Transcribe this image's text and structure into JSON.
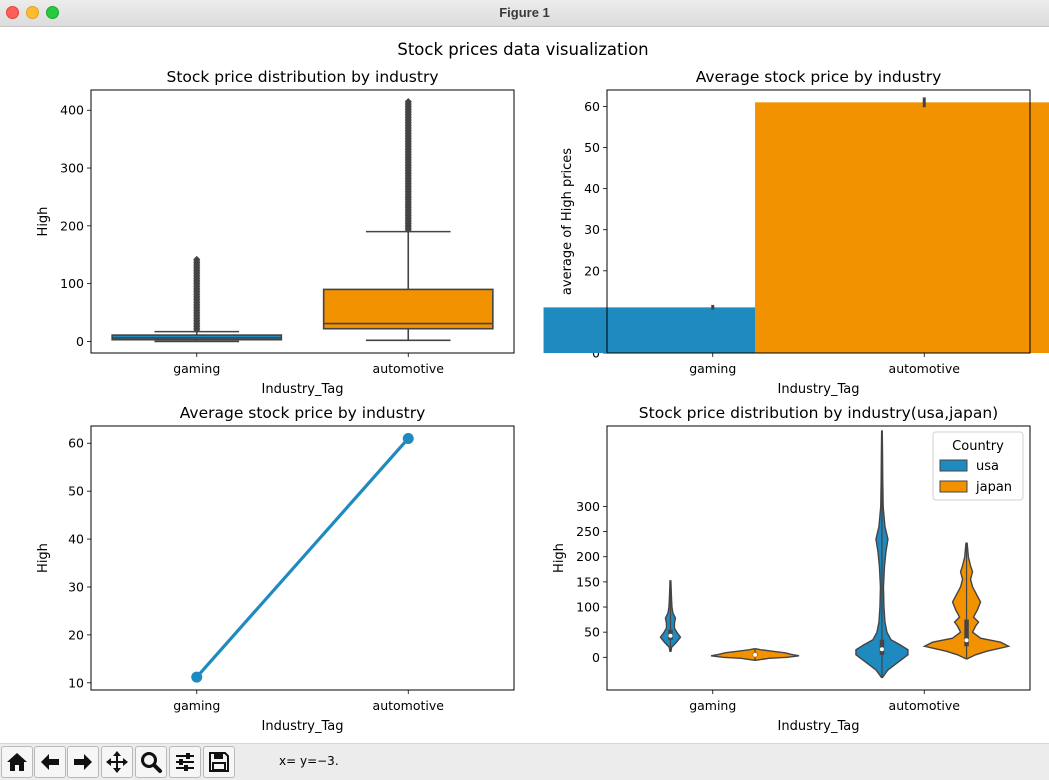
{
  "window": {
    "title": "Figure 1"
  },
  "figure": {
    "suptitle": "Stock prices data visualization"
  },
  "chart_data": [
    {
      "type": "box",
      "title": "Stock price distribution by industry",
      "xlabel": "Industry_Tag",
      "ylabel": "High",
      "categories": [
        "gaming",
        "automotive"
      ],
      "ylim": [
        -20,
        435
      ],
      "yticks": [
        0,
        100,
        200,
        300,
        400
      ],
      "boxes": [
        {
          "category": "gaming",
          "whisker_low": 0,
          "q1": 3,
          "median": 6,
          "q3": 11,
          "whisker_high": 17,
          "outlier_min": 20,
          "outlier_max": 142,
          "color": "#1f8ac0"
        },
        {
          "category": "automotive",
          "whisker_low": 2,
          "q1": 22,
          "median": 31,
          "q3": 90,
          "whisker_high": 190,
          "outlier_min": 193,
          "outlier_max": 415,
          "color": "#f39200"
        }
      ]
    },
    {
      "type": "bar",
      "title": "Average stock price by industry",
      "xlabel": "Industry_Tag",
      "ylabel": "average of High prices",
      "categories": [
        "gaming",
        "automotive"
      ],
      "values": [
        11.1,
        61.0
      ],
      "ci_low": [
        10.6,
        59.8
      ],
      "ci_high": [
        11.7,
        62.2
      ],
      "colors": [
        "#1f8ac0",
        "#f39200"
      ],
      "ylim": [
        0,
        64
      ],
      "yticks": [
        0,
        10,
        20,
        30,
        40,
        50,
        60
      ]
    },
    {
      "type": "line",
      "title": "Average stock price by industry",
      "xlabel": "Industry_Tag",
      "ylabel": "High",
      "categories": [
        "gaming",
        "automotive"
      ],
      "values": [
        11.2,
        61.0
      ],
      "ci_low": [
        10.7,
        59.9
      ],
      "ci_high": [
        11.7,
        62.1
      ],
      "color": "#1f8ac0",
      "ylim": [
        8.5,
        63.6
      ],
      "yticks": [
        10,
        20,
        30,
        40,
        50,
        60
      ]
    },
    {
      "type": "violin",
      "title": "Stock price distribution by industry(usa,japan)",
      "xlabel": "Industry_Tag",
      "ylabel": "High",
      "categories": [
        "gaming",
        "automotive"
      ],
      "legend": {
        "title": "Country",
        "position": "upper right",
        "entries": [
          "usa",
          "japan"
        ]
      },
      "hue_colors": [
        "#1f8ac0",
        "#f39200"
      ],
      "ylim": [
        -65,
        460
      ],
      "yticks": [
        0,
        50,
        100,
        150,
        200,
        250,
        300
      ],
      "violins": [
        {
          "category": "gaming",
          "hue": "usa",
          "min": 12,
          "max": 152,
          "q1": 35,
          "median": 43,
          "q3": 55,
          "profile": [
            [
              12,
              0.5
            ],
            [
              20,
              1.2
            ],
            [
              30,
              6
            ],
            [
              40,
              10
            ],
            [
              48,
              7
            ],
            [
              58,
              4
            ],
            [
              68,
              4
            ],
            [
              78,
              5
            ],
            [
              88,
              2.5
            ],
            [
              100,
              1.5
            ],
            [
              120,
              1
            ],
            [
              152,
              0.4
            ]
          ]
        },
        {
          "category": "gaming",
          "hue": "japan",
          "min": -6,
          "max": 17,
          "q1": 2,
          "median": 5,
          "q3": 9,
          "profile": [
            [
              -6,
              0.3
            ],
            [
              -2,
              14
            ],
            [
              0,
              32
            ],
            [
              3,
              44
            ],
            [
              6,
              36
            ],
            [
              9,
              30
            ],
            [
              12,
              18
            ],
            [
              15,
              6
            ],
            [
              17,
              1
            ]
          ]
        },
        {
          "category": "automotive",
          "hue": "usa",
          "min": -40,
          "max": 450,
          "q1": 5,
          "median": 16,
          "q3": 35,
          "profile": [
            [
              -40,
              0.5
            ],
            [
              -25,
              6
            ],
            [
              -10,
              16
            ],
            [
              5,
              26
            ],
            [
              15,
              26
            ],
            [
              25,
              18
            ],
            [
              35,
              9
            ],
            [
              50,
              5
            ],
            [
              70,
              3
            ],
            [
              100,
              2
            ],
            [
              140,
              1.5
            ],
            [
              180,
              2.5
            ],
            [
              210,
              4
            ],
            [
              235,
              6
            ],
            [
              260,
              3
            ],
            [
              300,
              1.2
            ],
            [
              350,
              0.8
            ],
            [
              400,
              0.6
            ],
            [
              450,
              0.3
            ]
          ]
        },
        {
          "category": "automotive",
          "hue": "japan",
          "min": -3,
          "max": 227,
          "q1": 22,
          "median": 34,
          "q3": 75,
          "profile": [
            [
              -3,
              0.5
            ],
            [
              5,
              9
            ],
            [
              12,
              20
            ],
            [
              22,
              42
            ],
            [
              30,
              34
            ],
            [
              38,
              14
            ],
            [
              50,
              6
            ],
            [
              62,
              9
            ],
            [
              70,
              12
            ],
            [
              80,
              7
            ],
            [
              95,
              11
            ],
            [
              110,
              14
            ],
            [
              125,
              10
            ],
            [
              140,
              6
            ],
            [
              155,
              4
            ],
            [
              170,
              6
            ],
            [
              182,
              4
            ],
            [
              200,
              1.8
            ],
            [
              227,
              0.6
            ]
          ]
        }
      ]
    }
  ],
  "toolbar": {
    "buttons": [
      "home-icon",
      "back-arrow-icon",
      "forward-arrow-icon",
      "pan-icon",
      "zoom-icon",
      "configure-subplots-icon",
      "save-icon"
    ],
    "coords_text": "x= y=−3."
  }
}
